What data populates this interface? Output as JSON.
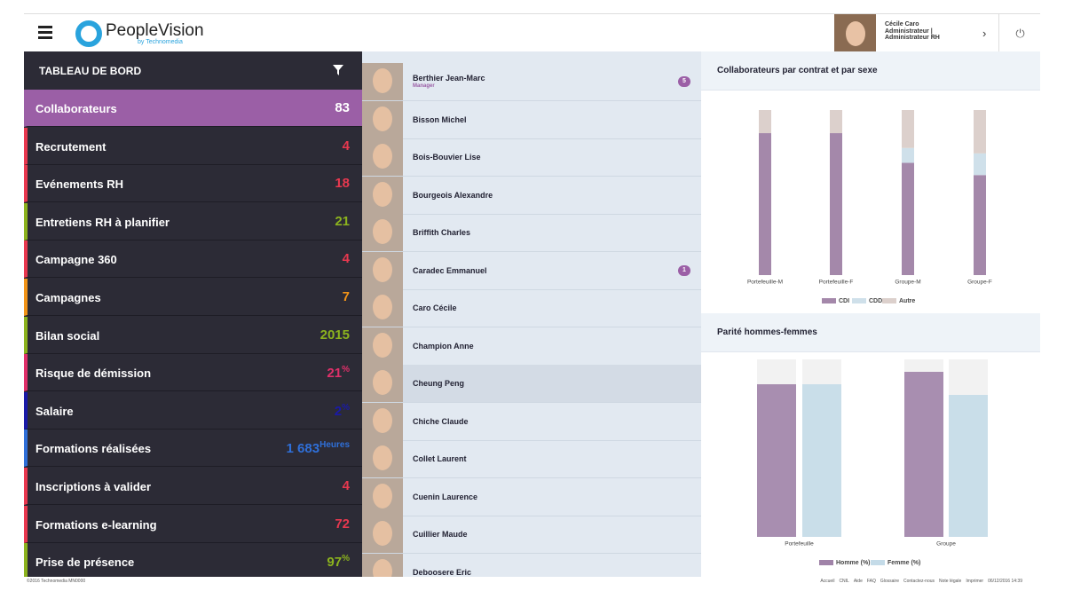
{
  "header": {
    "logo": "PeopleVision",
    "logo_sub": "by Technomedia",
    "user_name": "Cécile Caro",
    "user_role": "Administrateur | Administrateur RH"
  },
  "menu": {
    "title": "TABLEAU DE BORD",
    "items": [
      {
        "label": "Collaborateurs",
        "value": "83",
        "color": "#9b5fa6"
      },
      {
        "label": "Recrutement",
        "value": "4",
        "color": "#e8384f"
      },
      {
        "label": "Evénements RH",
        "value": "18",
        "color": "#e8384f"
      },
      {
        "label": "Entretiens RH à planifier",
        "value": "21",
        "color": "#8cb31e"
      },
      {
        "label": "Campagne 360",
        "value": "4",
        "color": "#e8384f"
      },
      {
        "label": "Campagnes",
        "value": "7",
        "color": "#f29418"
      },
      {
        "label": "Bilan social",
        "value": "2015",
        "color": "#8cb31e"
      },
      {
        "label": "Risque de démission",
        "value": "21",
        "unit": "%",
        "color": "#e0306a"
      },
      {
        "label": "Salaire",
        "value": "2",
        "unit": "%",
        "color": "#1a1aa8"
      },
      {
        "label": "Formations réalisées",
        "value": "1 683",
        "unit": "Heures",
        "color": "#2f6fd8"
      },
      {
        "label": "Inscriptions à valider",
        "value": "4",
        "color": "#e8384f"
      },
      {
        "label": "Formations e-learning",
        "value": "72",
        "color": "#e8384f"
      },
      {
        "label": "Prise de présence",
        "value": "97",
        "unit": "%",
        "color": "#8cb31e"
      }
    ]
  },
  "people": [
    {
      "name": "Berthier Jean-Marc",
      "role": "Manager",
      "badge": "5"
    },
    {
      "name": "Bisson Michel"
    },
    {
      "name": "Bois-Bouvier Lise"
    },
    {
      "name": "Bourgeois Alexandre"
    },
    {
      "name": "Briffith Charles"
    },
    {
      "name": "Caradec Emmanuel",
      "badge": "1"
    },
    {
      "name": "Caro Cécile"
    },
    {
      "name": "Champion Anne"
    },
    {
      "name": "Cheung Peng"
    },
    {
      "name": "Chiche Claude"
    },
    {
      "name": "Collet Laurent"
    },
    {
      "name": "Cuenin Laurence"
    },
    {
      "name": "Cuillier Maude"
    },
    {
      "name": "Deboosere Eric"
    }
  ],
  "chart_data": [
    {
      "type": "stacked-bar",
      "title": "Collaborateurs par contrat et par sexe",
      "categories": [
        "Portefeuille-M",
        "Portefeuille-F",
        "Groupe-M",
        "Groupe-F"
      ],
      "series": [
        {
          "name": "CDI",
          "color": "#a488aa",
          "values": [
            86,
            86,
            68,
            60
          ]
        },
        {
          "name": "CDD",
          "color": "#cfe0ea",
          "values": [
            0,
            0,
            9,
            13
          ]
        },
        {
          "name": "Autre",
          "color": "#dcd0cc",
          "values": [
            14,
            14,
            23,
            26
          ]
        }
      ]
    },
    {
      "type": "bar",
      "title": "Parité hommes-femmes",
      "categories": [
        "Portefeuille",
        "Groupe"
      ],
      "ylim": [
        0,
        100
      ],
      "series": [
        {
          "name": "Homme (%)",
          "color": "#a083a8",
          "values": [
            86,
            93
          ]
        },
        {
          "name": "Femme (%)",
          "color": "#c4dbe8",
          "values": [
            86,
            80
          ]
        }
      ]
    }
  ],
  "footer": {
    "copyright": "©2016 Technomedia MN0000",
    "links": [
      "Accueil",
      "CNIL",
      "Aide",
      "FAQ",
      "Glossaire",
      "Contactez-nous",
      "Note légale",
      "Imprimer"
    ],
    "datetime": "06/12/2016 14:39"
  }
}
